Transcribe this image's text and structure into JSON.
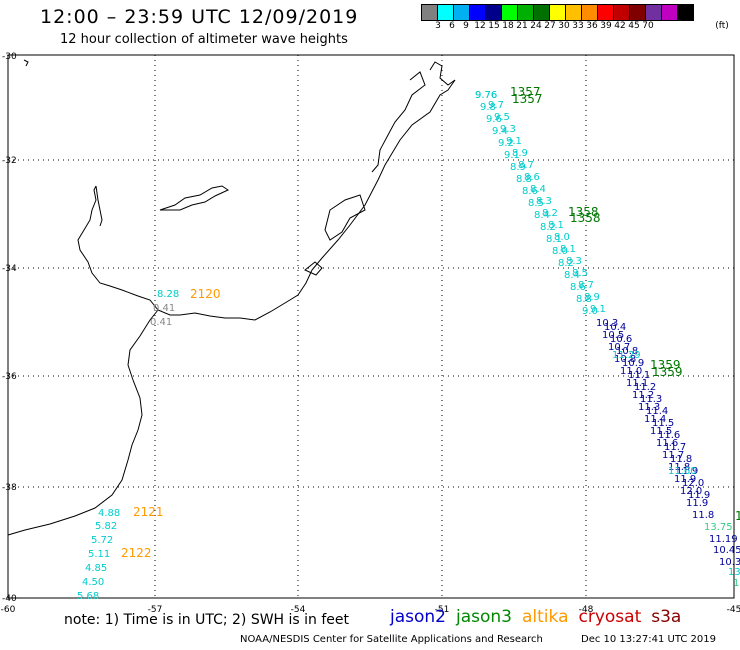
{
  "header": {
    "title": "12:00 – 23:59 UTC 12/09/2019",
    "subtitle": "12 hour collection of altimeter wave heights"
  },
  "scale": {
    "unit": "(ft)",
    "colors": [
      "#808080",
      "#00ffff",
      "#00b0f0",
      "#0000ff",
      "#00008b",
      "#00ff00",
      "#00b000",
      "#007000",
      "#ffff00",
      "#ffc000",
      "#ff8c00",
      "#ff0000",
      "#c00000",
      "#800000",
      "#7030a0",
      "#c000c0",
      "#000000"
    ],
    "labels": [
      "3",
      "6",
      "9",
      "12",
      "15",
      "18",
      "21",
      "24",
      "27",
      "30",
      "33",
      "36",
      "39",
      "42",
      "45",
      "70"
    ]
  },
  "axes": {
    "lat_labels": [
      "-30",
      "-32",
      "-34",
      "-36",
      "-38",
      "-40"
    ],
    "lon_labels": [
      "-60",
      "-57",
      "-54",
      "-51",
      "-48",
      "-45"
    ]
  },
  "annotations": {
    "pass_labels": [
      "1357",
      "1357",
      "1358",
      "1358",
      "1359",
      "1359",
      "2120",
      "2121",
      "2122",
      "1"
    ],
    "swh_values": [
      "9.76",
      "8.28",
      "0.41",
      "0.41",
      "4.88",
      "5.82",
      "5.72",
      "5.11",
      "4.85",
      "4.50",
      "5.68",
      "11.29",
      "11.60",
      "13.75",
      "11.19",
      "10.45",
      "10.3",
      "13",
      "1"
    ]
  },
  "footer": {
    "note": "note: 1) Time is in UTC; 2) SWH is in feet",
    "satellites": [
      {
        "name": "jason2",
        "color": "#0000cc"
      },
      {
        "name": "jason3",
        "color": "#008800"
      },
      {
        "name": "altika",
        "color": "#ff9900"
      },
      {
        "name": "cryosat",
        "color": "#cc0000"
      },
      {
        "name": "s3a",
        "color": "#880000"
      }
    ],
    "credit": "NOAA/NESDIS Center for Satellite Applications and Research",
    "timestamp": "Dec 10 13:27:41 UTC 2019"
  }
}
